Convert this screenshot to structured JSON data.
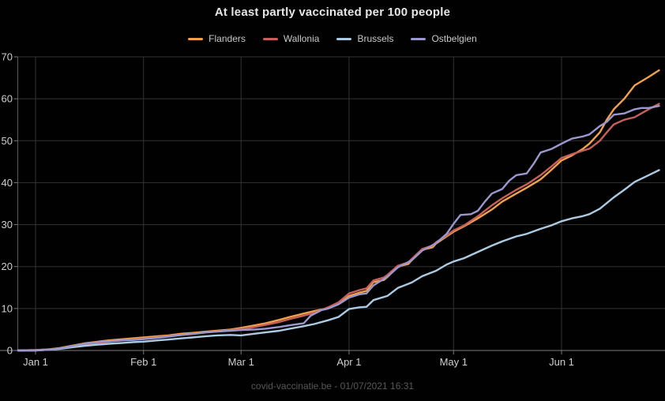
{
  "page": {
    "title": "At least partly vaccinated per 100 people",
    "footer": "covid-vaccinatie.be - 01/07/2021 16:31"
  },
  "chart_data": {
    "type": "line",
    "title": "At least partly vaccinated per 100 people",
    "xlabel": "",
    "ylabel": "",
    "ylim": [
      0,
      70
    ],
    "y_ticks": [
      0,
      10,
      20,
      30,
      40,
      50,
      60,
      70
    ],
    "x_ticks": [
      {
        "day": 0,
        "label": "Jan 1"
      },
      {
        "day": 31,
        "label": "Feb 1"
      },
      {
        "day": 59,
        "label": "Mar 1"
      },
      {
        "day": 90,
        "label": "Apr 1"
      },
      {
        "day": 120,
        "label": "May 1"
      },
      {
        "day": 151,
        "label": "Jun 1"
      }
    ],
    "grid": true,
    "legend_position": "top",
    "x_unit": "days since Jan 1 2021",
    "series": [
      {
        "name": "Flanders",
        "color": "#f0a14c",
        "points": [
          [
            -5,
            0
          ],
          [
            0,
            0.1
          ],
          [
            4,
            0.3
          ],
          [
            7,
            0.6
          ],
          [
            11,
            1.2
          ],
          [
            14,
            1.7
          ],
          [
            18,
            2.1
          ],
          [
            21,
            2.4
          ],
          [
            25,
            2.7
          ],
          [
            28,
            2.9
          ],
          [
            31,
            3.1
          ],
          [
            35,
            3.4
          ],
          [
            38,
            3.6
          ],
          [
            42,
            4.0
          ],
          [
            45,
            4.2
          ],
          [
            49,
            4.5
          ],
          [
            52,
            4.7
          ],
          [
            56,
            5.0
          ],
          [
            59,
            5.4
          ],
          [
            63,
            6.0
          ],
          [
            66,
            6.5
          ],
          [
            70,
            7.3
          ],
          [
            73,
            8.0
          ],
          [
            77,
            8.8
          ],
          [
            80,
            9.4
          ],
          [
            84,
            10.1
          ],
          [
            87,
            11.1
          ],
          [
            90,
            13.0
          ],
          [
            93,
            13.8
          ],
          [
            95,
            14.2
          ],
          [
            97,
            16.3
          ],
          [
            100,
            16.8
          ],
          [
            101,
            17.5
          ],
          [
            104,
            20.0
          ],
          [
            107,
            20.6
          ],
          [
            108,
            21.5
          ],
          [
            111,
            24.0
          ],
          [
            114,
            24.6
          ],
          [
            115,
            25.5
          ],
          [
            118,
            27.2
          ],
          [
            120,
            28.3
          ],
          [
            123,
            29.6
          ],
          [
            127,
            31.5
          ],
          [
            131,
            33.6
          ],
          [
            134,
            35.5
          ],
          [
            138,
            37.4
          ],
          [
            141,
            38.8
          ],
          [
            145,
            40.8
          ],
          [
            148,
            43.0
          ],
          [
            151,
            45.3
          ],
          [
            154,
            46.5
          ],
          [
            157,
            48.0
          ],
          [
            159,
            49.3
          ],
          [
            162,
            52.0
          ],
          [
            164,
            55.0
          ],
          [
            166,
            57.5
          ],
          [
            169,
            60.0
          ],
          [
            172,
            63.2
          ],
          [
            176,
            65.2
          ],
          [
            179,
            66.8
          ]
        ]
      },
      {
        "name": "Wallonia",
        "color": "#c7605a",
        "points": [
          [
            -5,
            0
          ],
          [
            0,
            0.1
          ],
          [
            4,
            0.25
          ],
          [
            7,
            0.5
          ],
          [
            11,
            1.0
          ],
          [
            14,
            1.4
          ],
          [
            18,
            1.8
          ],
          [
            21,
            2.1
          ],
          [
            25,
            2.4
          ],
          [
            28,
            2.6
          ],
          [
            31,
            2.8
          ],
          [
            35,
            3.1
          ],
          [
            38,
            3.4
          ],
          [
            42,
            3.7
          ],
          [
            45,
            3.9
          ],
          [
            49,
            4.3
          ],
          [
            52,
            4.5
          ],
          [
            56,
            4.8
          ],
          [
            59,
            5.1
          ],
          [
            63,
            5.6
          ],
          [
            66,
            6.1
          ],
          [
            70,
            6.8
          ],
          [
            73,
            7.5
          ],
          [
            77,
            8.3
          ],
          [
            80,
            9.0
          ],
          [
            84,
            10.3
          ],
          [
            87,
            11.5
          ],
          [
            90,
            13.6
          ],
          [
            93,
            14.4
          ],
          [
            95,
            14.8
          ],
          [
            97,
            16.7
          ],
          [
            100,
            17.4
          ],
          [
            101,
            18.0
          ],
          [
            104,
            20.2
          ],
          [
            107,
            21.0
          ],
          [
            108,
            21.8
          ],
          [
            111,
            24.2
          ],
          [
            114,
            25.0
          ],
          [
            115,
            25.8
          ],
          [
            118,
            27.4
          ],
          [
            120,
            28.6
          ],
          [
            123,
            29.8
          ],
          [
            127,
            32.0
          ],
          [
            131,
            34.6
          ],
          [
            134,
            36.3
          ],
          [
            138,
            38.3
          ],
          [
            141,
            39.6
          ],
          [
            145,
            41.8
          ],
          [
            148,
            43.8
          ],
          [
            151,
            45.9
          ],
          [
            154,
            46.8
          ],
          [
            157,
            47.6
          ],
          [
            159,
            48.1
          ],
          [
            162,
            50.0
          ],
          [
            164,
            52.0
          ],
          [
            166,
            53.9
          ],
          [
            169,
            55.0
          ],
          [
            172,
            55.6
          ],
          [
            176,
            57.5
          ],
          [
            179,
            58.8
          ]
        ]
      },
      {
        "name": "Brussels",
        "color": "#abcbe3",
        "points": [
          [
            -5,
            0
          ],
          [
            0,
            0
          ],
          [
            4,
            0.2
          ],
          [
            7,
            0.4
          ],
          [
            11,
            0.8
          ],
          [
            14,
            1.1
          ],
          [
            18,
            1.4
          ],
          [
            21,
            1.6
          ],
          [
            25,
            1.8
          ],
          [
            28,
            2.0
          ],
          [
            31,
            2.1
          ],
          [
            35,
            2.4
          ],
          [
            38,
            2.6
          ],
          [
            42,
            2.9
          ],
          [
            45,
            3.1
          ],
          [
            49,
            3.4
          ],
          [
            52,
            3.6
          ],
          [
            56,
            3.7
          ],
          [
            59,
            3.6
          ],
          [
            63,
            4.0
          ],
          [
            66,
            4.3
          ],
          [
            70,
            4.7
          ],
          [
            73,
            5.2
          ],
          [
            77,
            5.8
          ],
          [
            80,
            6.3
          ],
          [
            84,
            7.2
          ],
          [
            87,
            8.0
          ],
          [
            90,
            9.9
          ],
          [
            93,
            10.3
          ],
          [
            95,
            10.4
          ],
          [
            97,
            12.0
          ],
          [
            101,
            13.0
          ],
          [
            104,
            14.9
          ],
          [
            108,
            16.2
          ],
          [
            111,
            17.7
          ],
          [
            115,
            19.0
          ],
          [
            118,
            20.5
          ],
          [
            120,
            21.2
          ],
          [
            123,
            22.0
          ],
          [
            127,
            23.5
          ],
          [
            131,
            25.0
          ],
          [
            134,
            26.0
          ],
          [
            138,
            27.2
          ],
          [
            141,
            27.8
          ],
          [
            145,
            29.0
          ],
          [
            148,
            29.8
          ],
          [
            151,
            30.8
          ],
          [
            154,
            31.5
          ],
          [
            157,
            32.0
          ],
          [
            159,
            32.5
          ],
          [
            162,
            33.8
          ],
          [
            166,
            36.5
          ],
          [
            169,
            38.3
          ],
          [
            172,
            40.2
          ],
          [
            176,
            41.8
          ],
          [
            179,
            43.0
          ]
        ]
      },
      {
        "name": "Ostbelgien",
        "color": "#9b97cf",
        "points": [
          [
            -5,
            0
          ],
          [
            0,
            0
          ],
          [
            4,
            0.2
          ],
          [
            7,
            0.5
          ],
          [
            11,
            1.1
          ],
          [
            14,
            1.6
          ],
          [
            18,
            2.0
          ],
          [
            21,
            2.2
          ],
          [
            25,
            2.4
          ],
          [
            28,
            2.5
          ],
          [
            31,
            2.7
          ],
          [
            35,
            3.0
          ],
          [
            38,
            3.3
          ],
          [
            42,
            3.7
          ],
          [
            45,
            4.0
          ],
          [
            49,
            4.3
          ],
          [
            52,
            4.5
          ],
          [
            56,
            4.7
          ],
          [
            59,
            4.9
          ],
          [
            63,
            5.0
          ],
          [
            66,
            5.2
          ],
          [
            70,
            5.6
          ],
          [
            73,
            6.0
          ],
          [
            77,
            6.5
          ],
          [
            79,
            8.3
          ],
          [
            82,
            9.6
          ],
          [
            84,
            10.0
          ],
          [
            87,
            11.0
          ],
          [
            90,
            12.6
          ],
          [
            93,
            13.4
          ],
          [
            95,
            13.6
          ],
          [
            97,
            15.5
          ],
          [
            101,
            17.6
          ],
          [
            104,
            19.8
          ],
          [
            108,
            21.5
          ],
          [
            111,
            23.8
          ],
          [
            115,
            25.6
          ],
          [
            118,
            27.8
          ],
          [
            120,
            30.2
          ],
          [
            122,
            32.3
          ],
          [
            125,
            32.5
          ],
          [
            127,
            33.3
          ],
          [
            129,
            35.5
          ],
          [
            131,
            37.4
          ],
          [
            134,
            38.5
          ],
          [
            136,
            40.5
          ],
          [
            138,
            41.8
          ],
          [
            141,
            42.2
          ],
          [
            143,
            44.5
          ],
          [
            145,
            47.2
          ],
          [
            148,
            48.0
          ],
          [
            151,
            49.3
          ],
          [
            154,
            50.5
          ],
          [
            157,
            51.0
          ],
          [
            159,
            51.5
          ],
          [
            162,
            53.5
          ],
          [
            164,
            54.5
          ],
          [
            166,
            56.2
          ],
          [
            169,
            56.5
          ],
          [
            172,
            57.5
          ],
          [
            174,
            57.8
          ],
          [
            176,
            57.8
          ],
          [
            179,
            58.3
          ]
        ]
      }
    ]
  }
}
